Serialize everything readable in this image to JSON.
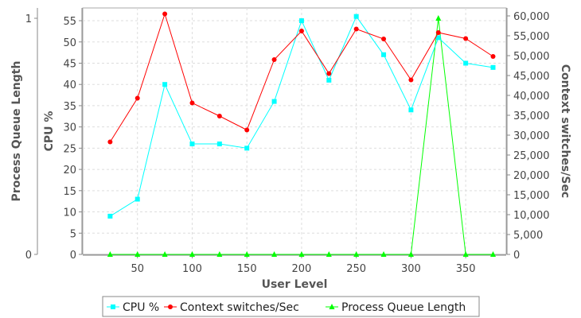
{
  "chart_data": {
    "type": "line",
    "xlabel": "User Level",
    "x_ticks": [
      50,
      100,
      150,
      200,
      250,
      300,
      350
    ],
    "xlim": [
      0,
      387
    ],
    "grid": true,
    "legend_position": "bottom",
    "axes": {
      "left": {
        "label": "CPU %",
        "range": [
          0,
          58
        ],
        "ticks": [
          0,
          5,
          10,
          15,
          20,
          25,
          30,
          35,
          40,
          45,
          50,
          55
        ]
      },
      "right": {
        "label": "Context switches/Sec",
        "range": [
          0,
          62000
        ],
        "ticks": [
          "0",
          "5,000",
          "10,000",
          "15,000",
          "20,000",
          "25,000",
          "30,000",
          "35,000",
          "40,000",
          "45,000",
          "50,000",
          "55,000",
          "60,000"
        ],
        "tick_values": [
          0,
          5000,
          10000,
          15000,
          20000,
          25000,
          30000,
          35000,
          40000,
          45000,
          50000,
          55000,
          60000
        ]
      },
      "far_left": {
        "label": "Process Queue Length",
        "range": [
          0,
          1
        ],
        "ticks": [
          "0",
          "1"
        ],
        "tick_values": [
          0,
          1
        ]
      }
    },
    "x": [
      25,
      50,
      75,
      100,
      125,
      150,
      175,
      200,
      225,
      250,
      275,
      300,
      325,
      350,
      375
    ],
    "series": [
      {
        "name": "CPU %",
        "axis": "left",
        "color": "#00ffff",
        "marker": "square",
        "values": [
          9,
          13,
          40,
          26,
          26,
          25,
          36,
          55,
          41,
          56,
          47,
          34,
          51,
          45,
          44
        ]
      },
      {
        "name": "Context switches/Sec",
        "axis": "right",
        "color": "#ff0000",
        "marker": "circle",
        "values": [
          28300,
          39300,
          60500,
          38100,
          34800,
          31300,
          49000,
          56200,
          45500,
          56700,
          54200,
          43900,
          55800,
          54300,
          49800
        ]
      },
      {
        "name": "Process Queue Length",
        "axis": "far_left",
        "color": "#00ff00",
        "marker": "triangle",
        "values": [
          0,
          0,
          0,
          0,
          0,
          0,
          0,
          0,
          0,
          0,
          0,
          0,
          1,
          0,
          0
        ]
      }
    ]
  }
}
